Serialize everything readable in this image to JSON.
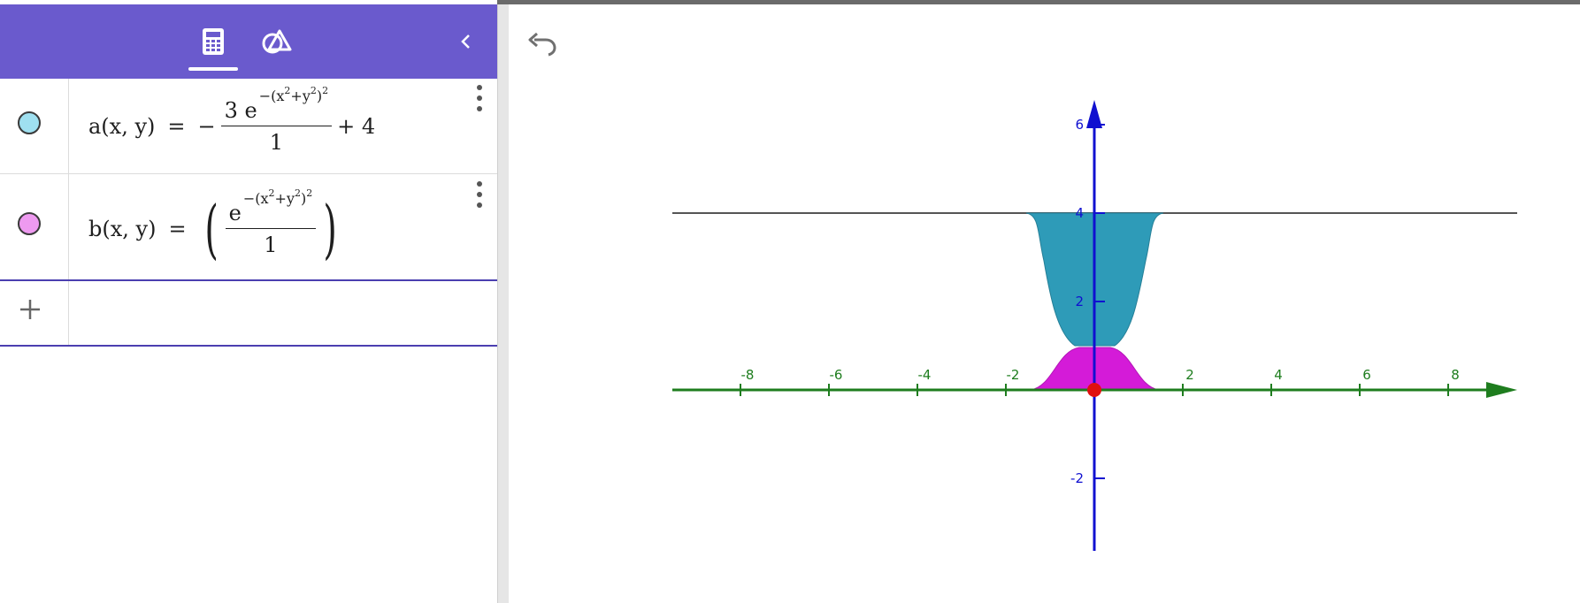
{
  "toolbar": {
    "tabs": [
      {
        "name": "algebra",
        "icon": "calculator-icon",
        "active": true
      },
      {
        "name": "tools",
        "icon": "geometry-tools-icon",
        "active": false
      }
    ],
    "collapse_icon": "chevron-left-icon"
  },
  "algebra": {
    "rows": [
      {
        "color": "#9fe0f0",
        "lhs": "a(x, y)",
        "eq": "=",
        "sign": "−",
        "num_coef": "3",
        "num_base": "e",
        "num_exp": "−(x",
        "num_exp_sq1": "2",
        "num_exp_plus": "+y",
        "num_exp_sq2": "2",
        "num_exp_close": ")",
        "num_exp_outer": "2",
        "den": "1",
        "tail": "+ 4"
      },
      {
        "color": "#ee9af0",
        "lhs": "b(x, y)",
        "eq": "=",
        "num_base": "e",
        "num_exp": "−(x",
        "num_exp_sq1": "2",
        "num_exp_plus": "+y",
        "num_exp_sq2": "2",
        "num_exp_close": ")",
        "num_exp_outer": "2",
        "den": "1"
      }
    ],
    "input_icon": "plus-icon"
  },
  "graphics": {
    "undo_icon": "undo-icon",
    "x_ticks": [
      "-8",
      "-6",
      "-4",
      "-2",
      "2",
      "4",
      "6",
      "8"
    ],
    "z_ticks": [
      "6",
      "4",
      "2",
      "-2"
    ],
    "colors": {
      "x_axis": "#1e7d1e",
      "z_axis": "#1010d0",
      "surface_a": "#2e9bb8",
      "surface_b": "#d41bd8",
      "point": "#e01010",
      "plane_line": "#555555"
    }
  }
}
